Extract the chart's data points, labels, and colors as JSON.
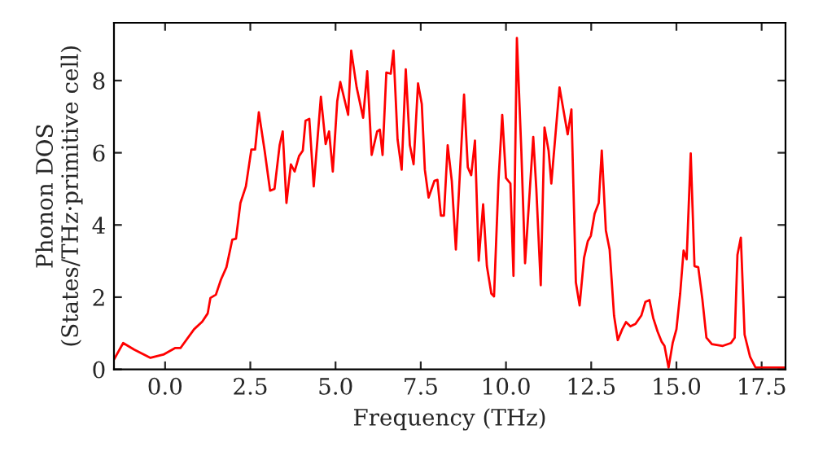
{
  "chart_data": {
    "type": "line",
    "xlabel": "Frequency (THz)",
    "ylabel": "Phonon DOS\n(States/THz·primitive cell)",
    "xlim": [
      -1.5,
      18.2
    ],
    "ylim": [
      0,
      9.6
    ],
    "xticks": [
      {
        "value": 0,
        "label": "0.0"
      },
      {
        "value": 2.5,
        "label": "2.5"
      },
      {
        "value": 5,
        "label": "5.0"
      },
      {
        "value": 7.5,
        "label": "7.5"
      },
      {
        "value": 10,
        "label": "10.0"
      },
      {
        "value": 12.5,
        "label": "12.5"
      },
      {
        "value": 15,
        "label": "15.0"
      },
      {
        "value": 17.5,
        "label": "17.5"
      }
    ],
    "yticks": [
      0,
      2,
      4,
      6,
      8
    ],
    "marker": "none",
    "line_style": "solid",
    "series": [
      {
        "color": "#ff0000",
        "x": [
          -1.5,
          -1.23,
          -0.91,
          -0.43,
          -0.05,
          0.29,
          0.45,
          0.85,
          1.09,
          1.25,
          1.33,
          1.49,
          1.64,
          1.8,
          1.97,
          2.08,
          2.21,
          2.37,
          2.53,
          2.64,
          2.75,
          2.92,
          3.08,
          3.21,
          3.36,
          3.45,
          3.56,
          3.69,
          3.8,
          3.93,
          4.04,
          4.12,
          4.23,
          4.36,
          4.57,
          4.71,
          4.81,
          4.92,
          5.05,
          5.14,
          5.37,
          5.46,
          5.62,
          5.81,
          5.93,
          6.06,
          6.22,
          6.3,
          6.38,
          6.49,
          6.62,
          6.7,
          6.82,
          6.94,
          7.06,
          7.18,
          7.29,
          7.42,
          7.53,
          7.62,
          7.73,
          7.9,
          7.99,
          8.09,
          8.18,
          8.29,
          8.41,
          8.53,
          8.77,
          8.88,
          8.98,
          9.09,
          9.2,
          9.33,
          9.44,
          9.57,
          9.65,
          9.78,
          9.89,
          10.0,
          10.13,
          10.22,
          10.32,
          10.45,
          10.56,
          10.69,
          10.8,
          10.89,
          11.02,
          11.13,
          11.25,
          11.33,
          11.57,
          11.81,
          11.92,
          12.05,
          12.16,
          12.29,
          12.4,
          12.49,
          12.6,
          12.72,
          12.81,
          12.93,
          13.04,
          13.17,
          13.28,
          13.41,
          13.52,
          13.65,
          13.8,
          13.97,
          14.09,
          14.21,
          14.32,
          14.45,
          14.57,
          14.65,
          14.77,
          14.89,
          15.0,
          15.11,
          15.21,
          15.3,
          15.42,
          15.53,
          15.64,
          15.76,
          15.88,
          16.04,
          16.36,
          16.6,
          16.71,
          16.79,
          16.89,
          17.0,
          17.16,
          17.32,
          18.2
        ],
        "values": [
          0.27,
          0.73,
          0.55,
          0.32,
          0.41,
          0.59,
          0.59,
          1.11,
          1.32,
          1.55,
          1.98,
          2.07,
          2.49,
          2.83,
          3.59,
          3.62,
          4.61,
          5.07,
          6.09,
          6.09,
          7.12,
          6.06,
          4.95,
          5.0,
          6.21,
          6.59,
          4.61,
          5.68,
          5.48,
          5.91,
          6.06,
          6.89,
          6.94,
          5.07,
          7.55,
          6.24,
          6.59,
          5.48,
          7.43,
          7.96,
          7.05,
          8.83,
          7.81,
          6.97,
          8.26,
          5.94,
          6.59,
          6.64,
          5.94,
          8.22,
          8.19,
          8.83,
          6.37,
          5.53,
          8.31,
          6.21,
          5.68,
          7.92,
          7.35,
          5.53,
          4.76,
          5.22,
          5.25,
          4.26,
          4.26,
          6.21,
          5.22,
          3.32,
          7.61,
          5.6,
          5.38,
          6.34,
          3.01,
          4.57,
          2.86,
          2.1,
          2.02,
          5.22,
          7.05,
          5.3,
          5.15,
          2.59,
          9.18,
          6.06,
          2.94,
          4.84,
          6.44,
          5.0,
          2.33,
          6.7,
          6.06,
          5.15,
          7.81,
          6.51,
          7.2,
          2.41,
          1.77,
          3.09,
          3.55,
          3.7,
          4.31,
          4.61,
          6.06,
          3.85,
          3.32,
          1.49,
          0.81,
          1.11,
          1.31,
          1.19,
          1.26,
          1.49,
          1.87,
          1.92,
          1.42,
          1.04,
          0.76,
          0.65,
          0.05,
          0.73,
          1.11,
          2.1,
          3.29,
          3.05,
          5.98,
          2.86,
          2.83,
          1.95,
          0.88,
          0.7,
          0.65,
          0.73,
          0.88,
          3.17,
          3.65,
          0.96,
          0.35,
          0.05,
          0.05
        ]
      }
    ]
  }
}
